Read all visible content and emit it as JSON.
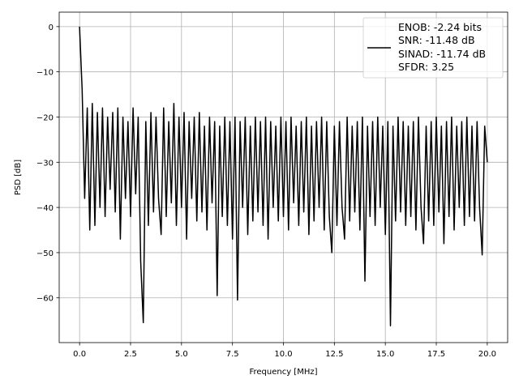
{
  "chart_data": {
    "type": "line",
    "title": "",
    "xlabel": "Frequency [MHz]",
    "ylabel": "PSD [dB]",
    "xlim": [
      -1.0,
      21.0
    ],
    "ylim": [
      -69.9,
      3.2
    ],
    "xticks": [
      0,
      2.5,
      5,
      7.5,
      10,
      12.5,
      15,
      17.5,
      20
    ],
    "xtick_labels": [
      "0.0",
      "2.5",
      "5.0",
      "7.5",
      "10.0",
      "12.5",
      "15.0",
      "17.5",
      "20.0"
    ],
    "yticks": [
      0,
      -10,
      -20,
      -30,
      -40,
      -50,
      -60
    ],
    "ytick_labels": [
      "0",
      "−10",
      "−20",
      "−30",
      "−40",
      "−50",
      "−60"
    ],
    "grid": true,
    "legend_placement": "top-right",
    "line_color": "#000000",
    "legend": [
      "ENOB: -2.24 bits",
      "SNR: -11.48 dB",
      "SINAD: -11.74 dB",
      "SFDR: 3.25"
    ],
    "series": [
      {
        "x_start": 0,
        "x_step": 0.125,
        "values": [
          0,
          -14,
          -38,
          -18,
          -45,
          -17,
          -44,
          -19,
          -40,
          -18,
          -42,
          -20,
          -36,
          -19,
          -41,
          -18,
          -47,
          -20,
          -38,
          -21,
          -42,
          -18,
          -37,
          -20,
          -52,
          -65.5,
          -21,
          -44,
          -19,
          -41,
          -20,
          -38,
          -46,
          -18,
          -42,
          -21,
          -39,
          -17,
          -44,
          -20,
          -40,
          -19,
          -47,
          -21,
          -38,
          -20,
          -43,
          -19,
          -41,
          -22,
          -45,
          -20,
          -39,
          -21,
          -59.5,
          -22,
          -42,
          -20,
          -44,
          -21,
          -47,
          -20,
          -60.5,
          -21,
          -40,
          -20,
          -46,
          -22,
          -43,
          -20,
          -41,
          -21,
          -44,
          -20,
          -47,
          -21,
          -40,
          -22,
          -43,
          -20,
          -42,
          -21,
          -45,
          -20,
          -39,
          -22,
          -44,
          -21,
          -41,
          -20,
          -46,
          -22,
          -43,
          -21,
          -40,
          -20,
          -45,
          -21,
          -42,
          -50,
          -22,
          -44,
          -21,
          -40,
          -47,
          -20,
          -43,
          -22,
          -41,
          -21,
          -45,
          -20,
          -56.3,
          -22,
          -42,
          -21,
          -44,
          -20,
          -40,
          -22,
          -46,
          -21,
          -66.2,
          -22,
          -43,
          -20,
          -41,
          -21,
          -44,
          -22,
          -42,
          -21,
          -45,
          -20,
          -40,
          -48,
          -22,
          -43,
          -21,
          -44,
          -20,
          -41,
          -22,
          -48,
          -21,
          -42,
          -20,
          -45,
          -22,
          -40,
          -21,
          -44,
          -20,
          -42,
          -22,
          -43,
          -21,
          -40,
          -50.5,
          -22,
          -30
        ]
      }
    ]
  }
}
